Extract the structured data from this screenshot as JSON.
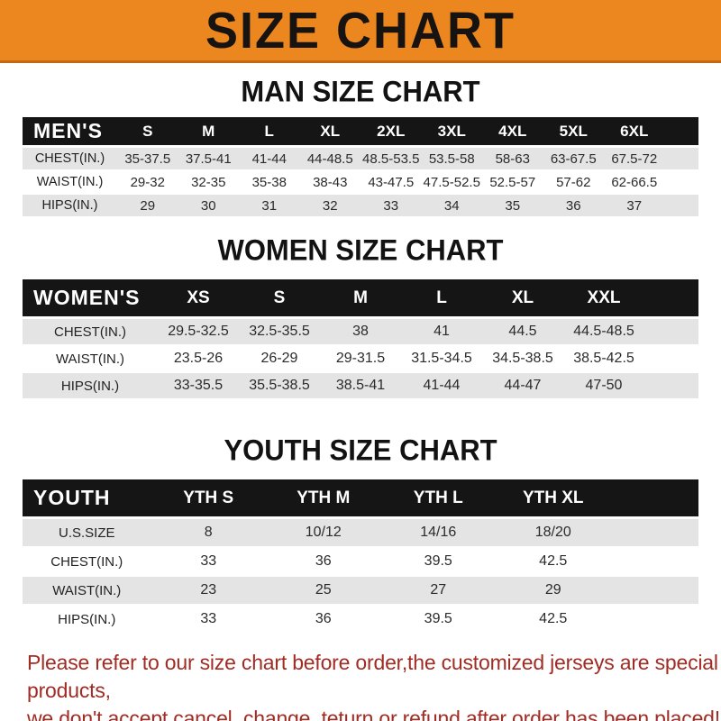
{
  "banner": {
    "title": "SIZE CHART"
  },
  "sections": [
    {
      "heading": "MAN SIZE CHART",
      "label": "MEN'S",
      "columns": [
        "S",
        "M",
        "L",
        "XL",
        "2XL",
        "3XL",
        "4XL",
        "5XL",
        "6XL"
      ],
      "rows": [
        {
          "label": "CHEST(IN.)",
          "values": [
            "35-37.5",
            "37.5-41",
            "41-44",
            "44-48.5",
            "48.5-53.5",
            "53.5-58",
            "58-63",
            "63-67.5",
            "67.5-72"
          ]
        },
        {
          "label": "WAIST(IN.)",
          "values": [
            "29-32",
            "32-35",
            "35-38",
            "38-43",
            "43-47.5",
            "47.5-52.5",
            "52.5-57",
            "57-62",
            "62-66.5"
          ]
        },
        {
          "label": "HIPS(IN.)",
          "values": [
            "29",
            "30",
            "31",
            "32",
            "33",
            "34",
            "35",
            "36",
            "37"
          ]
        }
      ]
    },
    {
      "heading": "WOMEN SIZE CHART",
      "label": "WOMEN'S",
      "columns": [
        "XS",
        "S",
        "M",
        "L",
        "XL",
        "XXL"
      ],
      "rows": [
        {
          "label": "CHEST(IN.)",
          "values": [
            "29.5-32.5",
            "32.5-35.5",
            "38",
            "41",
            "44.5",
            "44.5-48.5"
          ]
        },
        {
          "label": "WAIST(IN.)",
          "values": [
            "23.5-26",
            "26-29",
            "29-31.5",
            "31.5-34.5",
            "34.5-38.5",
            "38.5-42.5"
          ]
        },
        {
          "label": "HIPS(IN.)",
          "values": [
            "33-35.5",
            "35.5-38.5",
            "38.5-41",
            "41-44",
            "44-47",
            "47-50"
          ]
        }
      ]
    },
    {
      "heading": "YOUTH SIZE CHART",
      "label": "YOUTH",
      "columns": [
        "YTH S",
        "YTH M",
        "YTH L",
        "YTH XL"
      ],
      "rows": [
        {
          "label": "U.S.SIZE",
          "values": [
            "8",
            "10/12",
            "14/16",
            "18/20"
          ]
        },
        {
          "label": "CHEST(IN.)",
          "values": [
            "33",
            "36",
            "39.5",
            "42.5"
          ]
        },
        {
          "label": "WAIST(IN.)",
          "values": [
            "23",
            "25",
            "27",
            "29"
          ]
        },
        {
          "label": "HIPS(IN.)",
          "values": [
            "33",
            "36",
            "39.5",
            "42.5"
          ]
        }
      ]
    }
  ],
  "footer": {
    "line1": "Please refer to our size chart before order,the customized jerseys are special products,",
    "line2": "we don't accept cancel, change, teturn or refund after order has been placed!"
  },
  "colors": {
    "banner_bg": "#EC861E",
    "banner_edge": "#C06A14",
    "header_bar": "#151515",
    "row_stripe": "#E4E4E4",
    "notice_text": "#A02C24"
  }
}
